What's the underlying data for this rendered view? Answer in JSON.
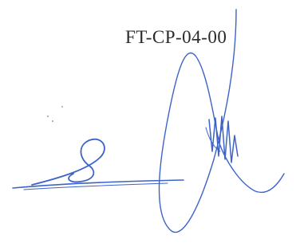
{
  "document": {
    "code": "FT-CP-04-00"
  }
}
